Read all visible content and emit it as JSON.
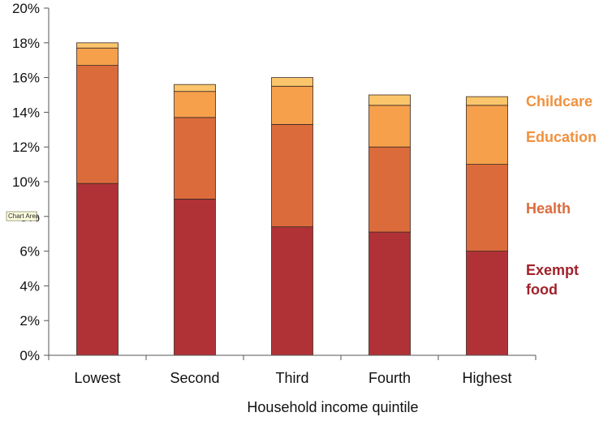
{
  "chart_data": {
    "type": "bar",
    "stacked": true,
    "categories": [
      "Lowest",
      "Second",
      "Third",
      "Fourth",
      "Highest"
    ],
    "series": [
      {
        "name": "Exempt food",
        "color": "#b03237",
        "values": [
          9.9,
          9.0,
          7.4,
          7.1,
          6.0
        ]
      },
      {
        "name": "Health",
        "color": "#dc6b3c",
        "values": [
          6.8,
          4.7,
          5.9,
          4.9,
          5.0
        ]
      },
      {
        "name": "Education",
        "color": "#f6a04c",
        "values": [
          1.0,
          1.5,
          2.2,
          2.4,
          3.4
        ]
      },
      {
        "name": "Childcare",
        "color": "#fbc56c",
        "values": [
          0.3,
          0.4,
          0.5,
          0.6,
          0.5
        ]
      }
    ],
    "xlabel": "Household income quintile",
    "ylabel": "",
    "ylim": [
      0,
      20
    ],
    "yticks": [
      0,
      2,
      4,
      6,
      8,
      10,
      12,
      14,
      16,
      18,
      20
    ],
    "ytick_labels": [
      "0%",
      "2%",
      "4%",
      "6%",
      "8%",
      "10%",
      "12%",
      "14%",
      "16%",
      "18%",
      "20%"
    ],
    "grid": false,
    "legend": {
      "placement": "right",
      "entries": [
        {
          "lines": [
            "Childcare"
          ],
          "color": "#f0913e"
        },
        {
          "lines": [
            "Education"
          ],
          "color": "#f0913e"
        },
        {
          "lines": [
            "Health"
          ],
          "color": "#dc6b3c"
        },
        {
          "lines": [
            "Exempt",
            "food"
          ],
          "color": "#a0222b"
        }
      ]
    }
  },
  "tooltip": {
    "text": "Chart Area"
  }
}
